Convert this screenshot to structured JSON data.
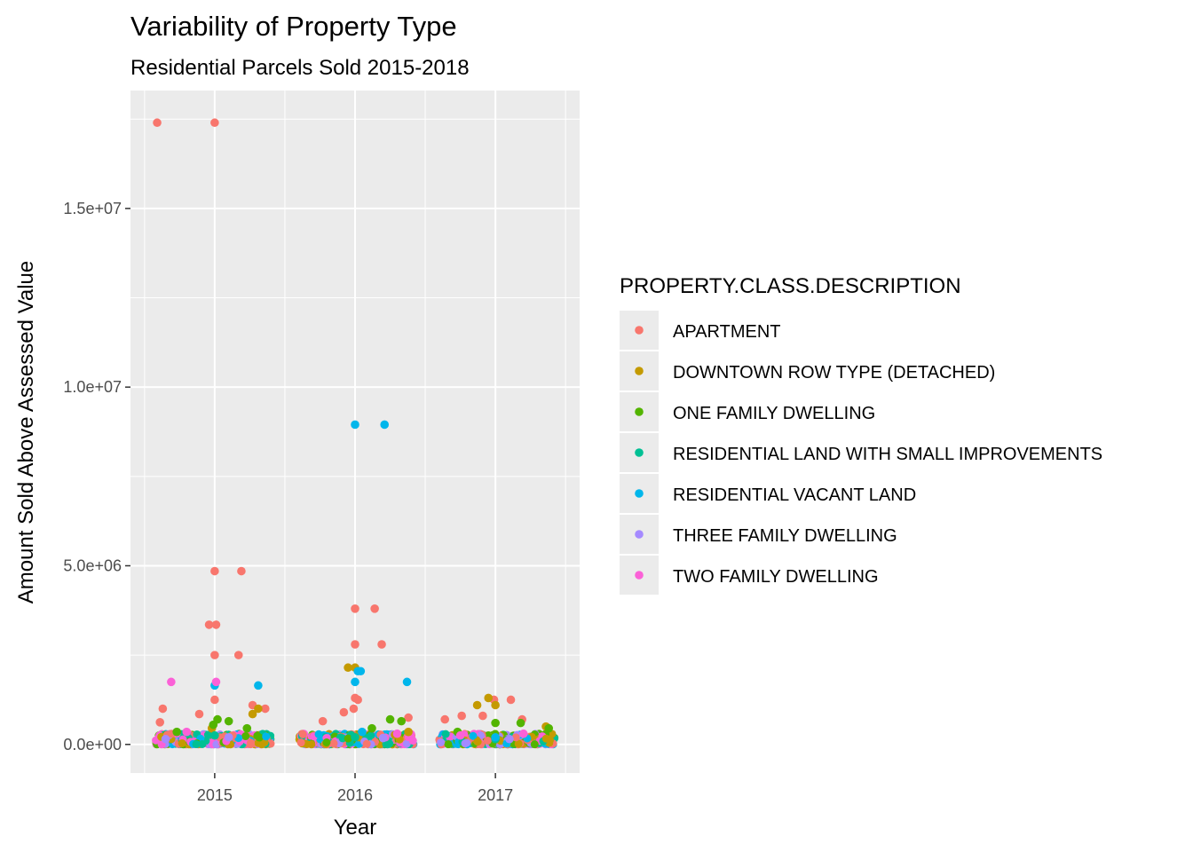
{
  "chart_data": {
    "type": "scatter",
    "title": "Variability of Property Type",
    "subtitle": "Residential Parcels Sold 2015-2018",
    "xlabel": "Year",
    "ylabel": "Amount Sold Above Assessed Value",
    "x_ticks": [
      "2015",
      "2016",
      "2017"
    ],
    "x_tick_values": [
      2015,
      2016,
      2017
    ],
    "y_ticks": [
      "0.0e+00",
      "5.0e+06",
      "1.0e+07",
      "1.5e+07"
    ],
    "y_tick_values": [
      0,
      5000000,
      10000000,
      15000000
    ],
    "xlim": [
      2014.4,
      2017.6
    ],
    "ylim": [
      -800000,
      18300000
    ],
    "grid": true,
    "panel_background": "#ebebeb",
    "jitter": "horizontal, approximately ±0.4 year around each year",
    "legend": {
      "title": "PROPERTY.CLASS.DESCRIPTION",
      "position": "right"
    },
    "series": [
      {
        "name": "APARTMENT",
        "color": "#f8766d",
        "points": [
          {
            "x": 2014.59,
            "y": 17400000
          },
          {
            "x": 2015.0,
            "y": 17400000
          },
          {
            "x": 2015.0,
            "y": 4850000
          },
          {
            "x": 2015.19,
            "y": 4850000
          },
          {
            "x": 2014.96,
            "y": 3350000
          },
          {
            "x": 2015.01,
            "y": 3350000
          },
          {
            "x": 2015.0,
            "y": 2500000
          },
          {
            "x": 2015.17,
            "y": 2500000
          },
          {
            "x": 2015.0,
            "y": 1250000
          },
          {
            "x": 2014.63,
            "y": 1000000
          },
          {
            "x": 2015.27,
            "y": 1100000
          },
          {
            "x": 2014.89,
            "y": 850000
          },
          {
            "x": 2014.61,
            "y": 620000
          },
          {
            "x": 2015.36,
            "y": 1000000
          },
          {
            "x": 2016.0,
            "y": 3800000
          },
          {
            "x": 2016.14,
            "y": 3800000
          },
          {
            "x": 2016.0,
            "y": 2800000
          },
          {
            "x": 2016.19,
            "y": 2800000
          },
          {
            "x": 2016.0,
            "y": 1300000
          },
          {
            "x": 2016.02,
            "y": 1250000
          },
          {
            "x": 2015.99,
            "y": 1000000
          },
          {
            "x": 2015.92,
            "y": 900000
          },
          {
            "x": 2015.77,
            "y": 650000
          },
          {
            "x": 2016.38,
            "y": 750000
          },
          {
            "x": 2016.91,
            "y": 800000
          },
          {
            "x": 2016.76,
            "y": 800000
          },
          {
            "x": 2016.99,
            "y": 1250000
          },
          {
            "x": 2017.11,
            "y": 1250000
          },
          {
            "x": 2016.64,
            "y": 700000
          },
          {
            "x": 2017.19,
            "y": 700000
          }
        ]
      },
      {
        "name": "DOWNTOWN ROW TYPE (DETACHED)",
        "color": "#c49a00",
        "points": [
          {
            "x": 2015.31,
            "y": 1000000
          },
          {
            "x": 2015.27,
            "y": 850000
          },
          {
            "x": 2014.98,
            "y": 450000
          },
          {
            "x": 2015.95,
            "y": 2150000
          },
          {
            "x": 2016.0,
            "y": 2150000
          },
          {
            "x": 2016.38,
            "y": 350000
          },
          {
            "x": 2016.87,
            "y": 1100000
          },
          {
            "x": 2016.95,
            "y": 1300000
          },
          {
            "x": 2017.0,
            "y": 1100000
          },
          {
            "x": 2017.36,
            "y": 500000
          }
        ]
      },
      {
        "name": "ONE FAMILY DWELLING",
        "color": "#53b400",
        "points": [
          {
            "x": 2015.02,
            "y": 700000
          },
          {
            "x": 2014.99,
            "y": 550000
          },
          {
            "x": 2015.1,
            "y": 650000
          },
          {
            "x": 2014.73,
            "y": 350000
          },
          {
            "x": 2015.23,
            "y": 450000
          },
          {
            "x": 2016.25,
            "y": 700000
          },
          {
            "x": 2016.33,
            "y": 650000
          },
          {
            "x": 2016.12,
            "y": 450000
          },
          {
            "x": 2017.0,
            "y": 600000
          },
          {
            "x": 2017.18,
            "y": 600000
          },
          {
            "x": 2017.38,
            "y": 450000
          },
          {
            "x": 2016.73,
            "y": 350000
          }
        ]
      },
      {
        "name": "RESIDENTIAL LAND WITH SMALL IMPROVEMENTS",
        "color": "#00c094",
        "points": [
          {
            "x": 2015.0,
            "y": 250000
          },
          {
            "x": 2016.0,
            "y": 200000
          },
          {
            "x": 2017.0,
            "y": 150000
          }
        ]
      },
      {
        "name": "RESIDENTIAL VACANT LAND",
        "color": "#00b6eb",
        "points": [
          {
            "x": 2016.0,
            "y": 8950000
          },
          {
            "x": 2016.21,
            "y": 8950000
          },
          {
            "x": 2016.02,
            "y": 2050000
          },
          {
            "x": 2016.04,
            "y": 2050000
          },
          {
            "x": 2016.0,
            "y": 1750000
          },
          {
            "x": 2016.37,
            "y": 1750000
          },
          {
            "x": 2015.0,
            "y": 1650000
          },
          {
            "x": 2015.31,
            "y": 1650000
          },
          {
            "x": 2016.05,
            "y": 350000
          },
          {
            "x": 2017.0,
            "y": 200000
          }
        ]
      },
      {
        "name": "THREE FAMILY DWELLING",
        "color": "#a58aff",
        "points": [
          {
            "x": 2014.65,
            "y": 150000
          },
          {
            "x": 2015.1,
            "y": 200000
          },
          {
            "x": 2016.2,
            "y": 180000
          },
          {
            "x": 2017.1,
            "y": 150000
          }
        ]
      },
      {
        "name": "TWO FAMILY DWELLING",
        "color": "#fb61d7",
        "points": [
          {
            "x": 2014.69,
            "y": 1750000
          },
          {
            "x": 2015.01,
            "y": 1750000
          },
          {
            "x": 2014.8,
            "y": 350000
          },
          {
            "x": 2016.3,
            "y": 300000
          },
          {
            "x": 2016.75,
            "y": 250000
          },
          {
            "x": 2017.2,
            "y": 300000
          }
        ]
      }
    ],
    "dense_base_band": {
      "description": "many overlapping points of all series between roughly 0 and 300,000",
      "x_ranges": [
        [
          2014.58,
          2015.4
        ],
        [
          2015.6,
          2016.42
        ],
        [
          2016.6,
          2017.43
        ]
      ],
      "y_range": [
        0,
        300000
      ],
      "colors": [
        "#f8766d",
        "#c49a00",
        "#53b400",
        "#00c094",
        "#00b6eb",
        "#a58aff",
        "#fb61d7"
      ]
    }
  }
}
